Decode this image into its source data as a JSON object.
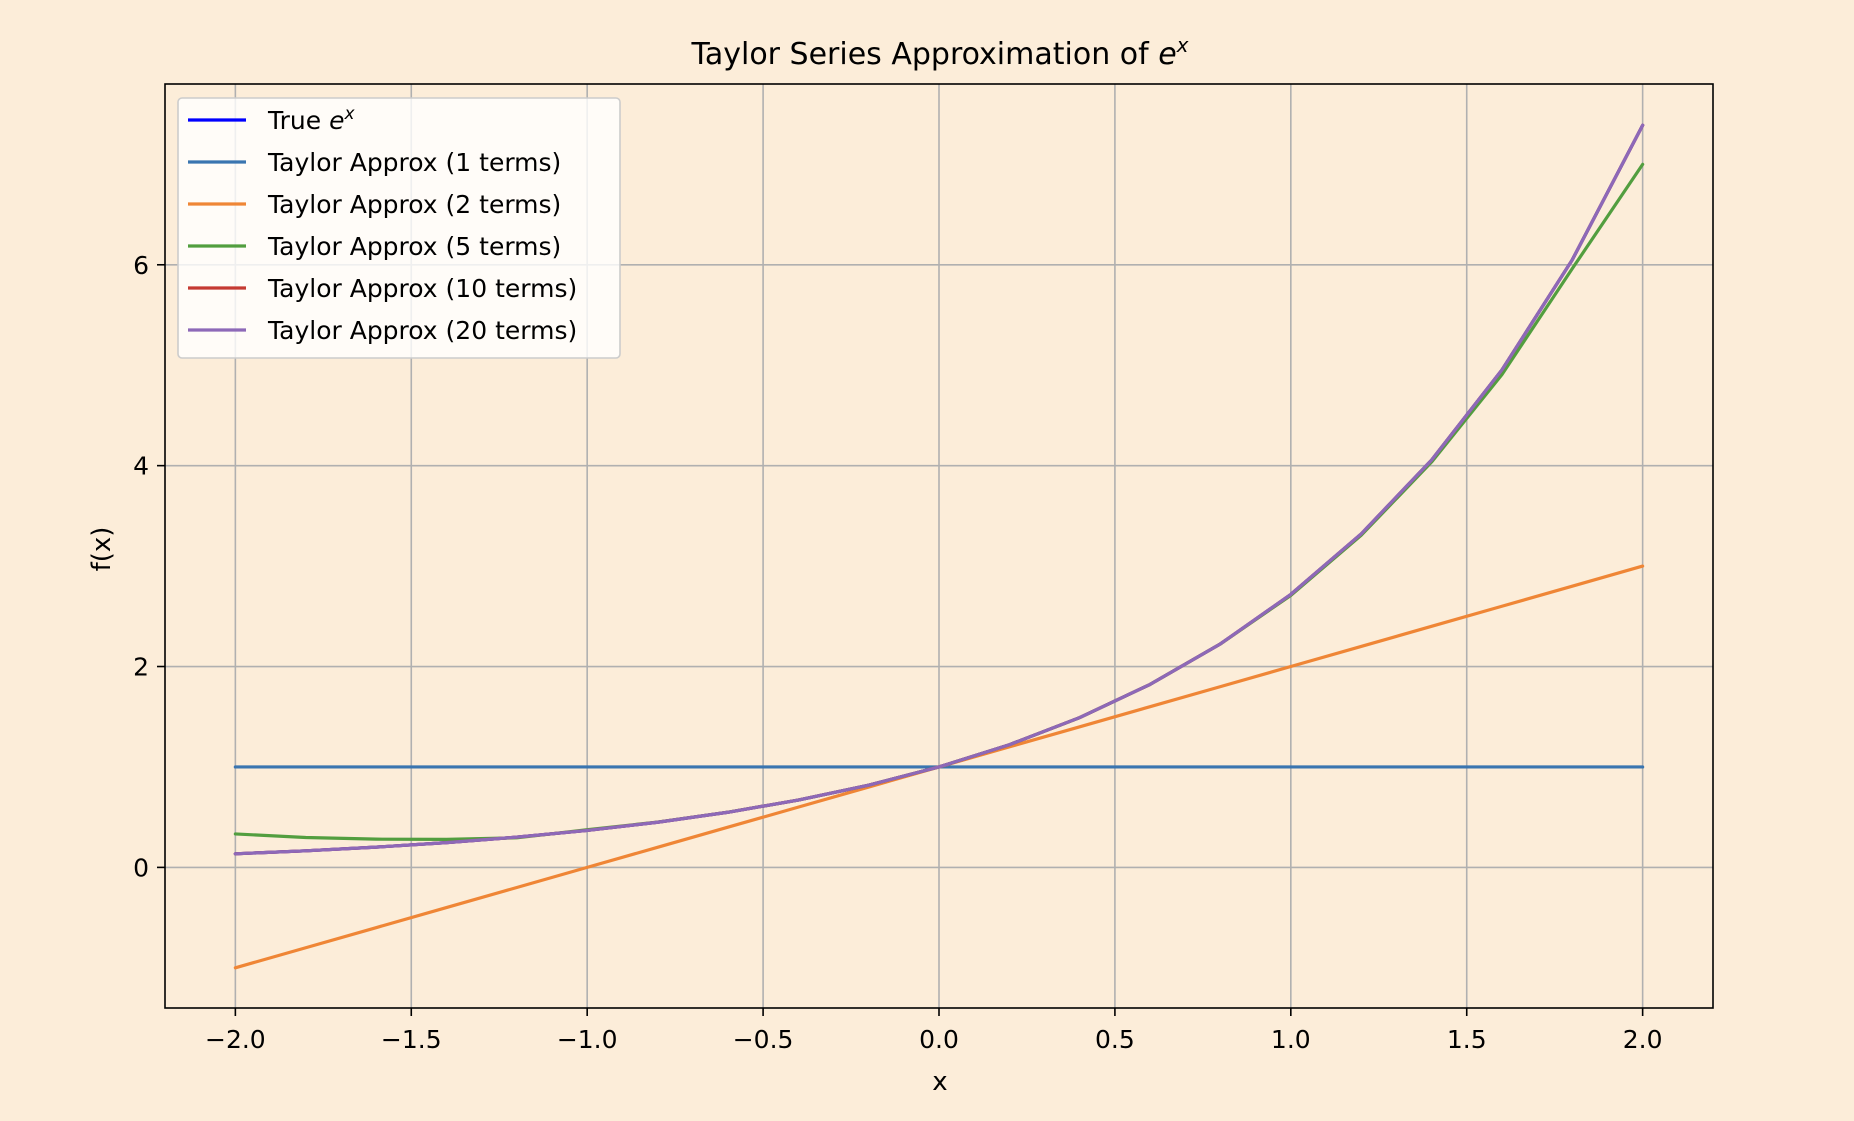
{
  "chart_data": {
    "type": "line",
    "title": "Taylor Series Approximation of ",
    "title_math": "e",
    "title_math_sup": "x",
    "xlabel": "x",
    "ylabel": "f(x)",
    "xlim": [
      -2.2,
      2.2
    ],
    "ylim": [
      -1.4,
      7.8
    ],
    "xticks": [
      -2.0,
      -1.5,
      -1.0,
      -0.5,
      0.0,
      0.5,
      1.0,
      1.5,
      2.0
    ],
    "xtick_labels": [
      "−2.0",
      "−1.5",
      "−1.0",
      "−0.5",
      "0.0",
      "0.5",
      "1.0",
      "1.5",
      "2.0"
    ],
    "yticks": [
      0,
      2,
      4,
      6
    ],
    "ytick_labels": [
      "0",
      "2",
      "4",
      "6"
    ],
    "grid": true,
    "legend_position": "top-left",
    "x": [
      -2.0,
      -1.8,
      -1.6,
      -1.4,
      -1.2,
      -1.0,
      -0.8,
      -0.6,
      -0.4,
      -0.2,
      0.0,
      0.2,
      0.4,
      0.6,
      0.8,
      1.0,
      1.2,
      1.4,
      1.6,
      1.8,
      2.0
    ],
    "series": [
      {
        "name": "True ",
        "name_math": "e",
        "name_math_sup": "x",
        "color": "#0000ff",
        "values": [
          0.1353,
          0.1653,
          0.2019,
          0.2466,
          0.3012,
          0.3679,
          0.4493,
          0.5488,
          0.6703,
          0.8187,
          1.0,
          1.2214,
          1.4918,
          1.8221,
          2.2255,
          2.7183,
          3.3201,
          4.0552,
          4.953,
          6.0496,
          7.3891
        ]
      },
      {
        "name": "Taylor Approx (1 terms)",
        "color": "#3a75b0",
        "values": [
          1,
          1,
          1,
          1,
          1,
          1,
          1,
          1,
          1,
          1,
          1,
          1,
          1,
          1,
          1,
          1,
          1,
          1,
          1,
          1,
          1
        ]
      },
      {
        "name": "Taylor Approx (2 terms)",
        "color": "#ef8636",
        "values": [
          -1.0,
          -0.8,
          -0.6,
          -0.4,
          -0.2,
          0.0,
          0.2,
          0.4,
          0.6,
          0.8,
          1.0,
          1.2,
          1.4,
          1.6,
          1.8,
          2.0,
          2.2,
          2.4,
          2.6,
          2.8,
          3.0
        ]
      },
      {
        "name": "Taylor Approx (5 terms)",
        "color": "#529e3f",
        "values": [
          0.3333,
          0.2974,
          0.2811,
          0.2791,
          0.2944,
          0.375,
          0.4512,
          0.5494,
          0.6704,
          0.8187,
          1.0,
          1.2214,
          1.4917,
          1.822,
          2.2251,
          2.7083,
          3.3064,
          4.0357,
          4.9061,
          5.9614,
          7.0
        ]
      },
      {
        "name": "Taylor Approx (10 terms)",
        "color": "#c53a32",
        "values": [
          0.1353,
          0.1653,
          0.2019,
          0.2466,
          0.3012,
          0.3679,
          0.4493,
          0.5488,
          0.6703,
          0.8187,
          1.0,
          1.2214,
          1.4918,
          1.8221,
          2.2255,
          2.7183,
          3.3201,
          4.0552,
          4.953,
          6.0496,
          7.3887
        ]
      },
      {
        "name": "Taylor Approx (20 terms)",
        "color": "#8d69b8",
        "values": [
          0.1353,
          0.1653,
          0.2019,
          0.2466,
          0.3012,
          0.3679,
          0.4493,
          0.5488,
          0.6703,
          0.8187,
          1.0,
          1.2214,
          1.4918,
          1.8221,
          2.2255,
          2.7183,
          3.3201,
          4.0552,
          4.953,
          6.0496,
          7.3891
        ]
      }
    ]
  }
}
